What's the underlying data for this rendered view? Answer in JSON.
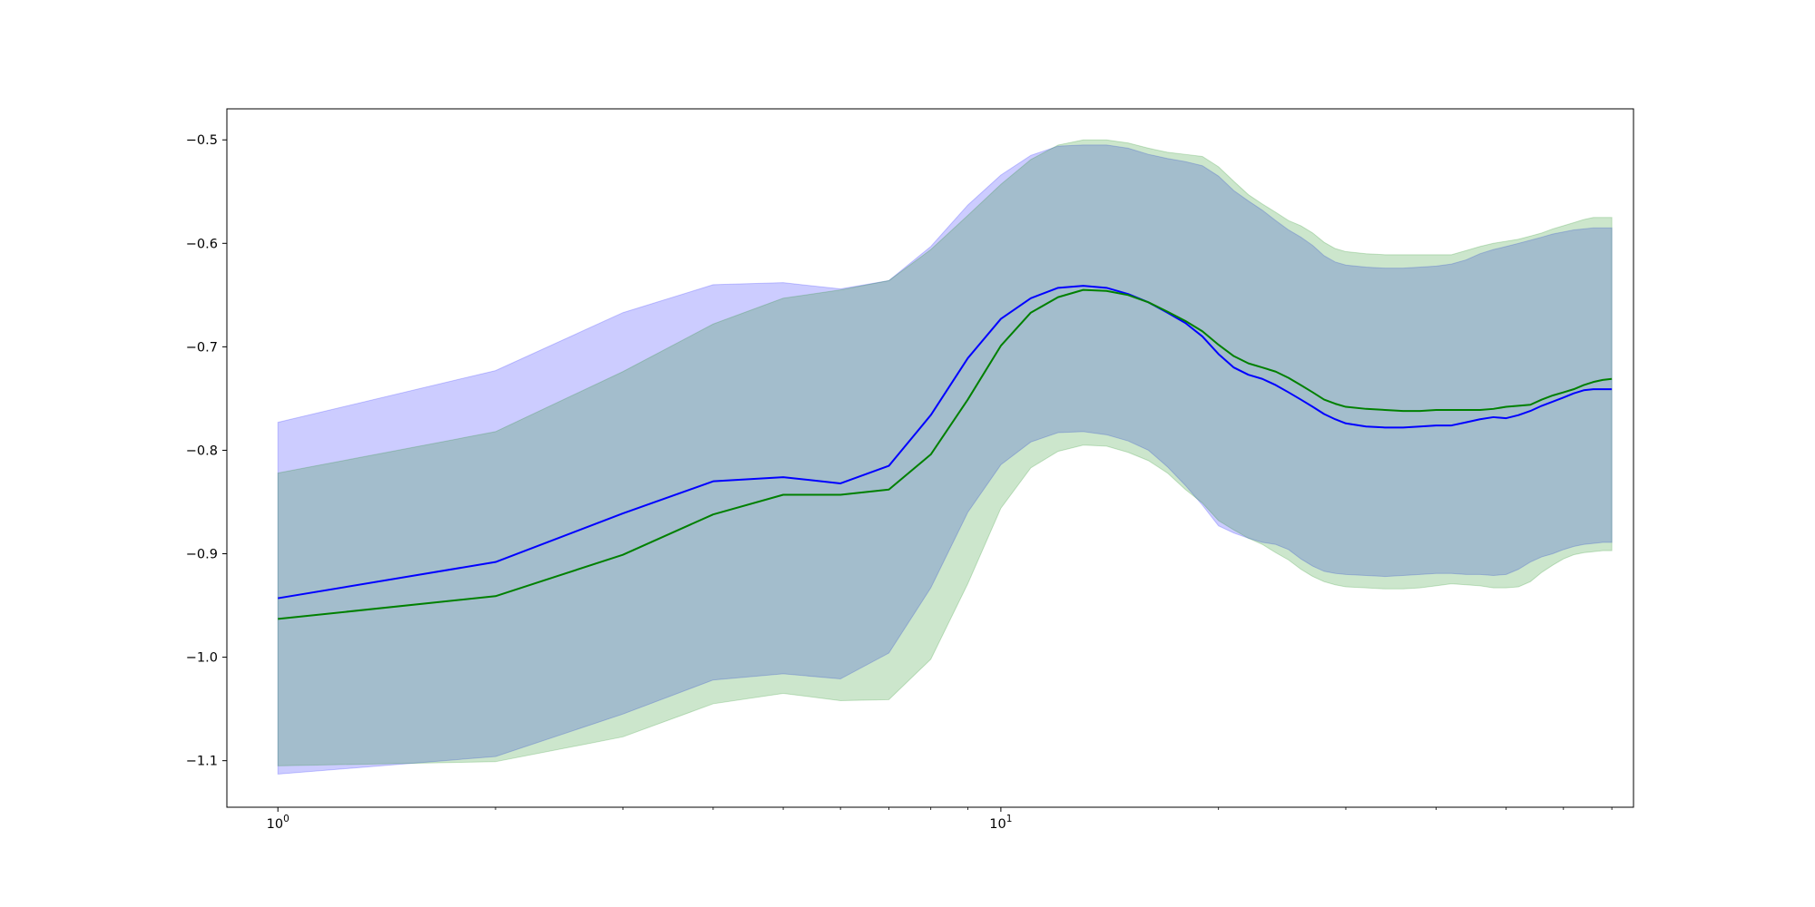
{
  "chart_data": {
    "type": "area",
    "title": "",
    "xlabel": "",
    "ylabel": "",
    "x_scale": "log",
    "xlim": [
      0.85,
      75
    ],
    "ylim": [
      -1.145,
      -0.47
    ],
    "grid": false,
    "legend": "none",
    "y_ticks": [
      {
        "value": -1.1,
        "label": "−1.1"
      },
      {
        "value": -1.0,
        "label": "−1.0"
      },
      {
        "value": -0.9,
        "label": "−0.9"
      },
      {
        "value": -0.8,
        "label": "−0.8"
      },
      {
        "value": -0.7,
        "label": "−0.7"
      },
      {
        "value": -0.6,
        "label": "−0.6"
      },
      {
        "value": -0.5,
        "label": "−0.5"
      }
    ],
    "x_ticks": [
      {
        "value": 1,
        "base": "10",
        "exponent": "0"
      },
      {
        "value": 10,
        "base": "10",
        "exponent": "1"
      }
    ],
    "x_minor_ticks": [
      2,
      3,
      4,
      5,
      6,
      7,
      8,
      9,
      20,
      30,
      40,
      50,
      60,
      70
    ],
    "x": [
      1,
      2,
      3,
      4,
      5,
      6,
      7,
      8,
      9,
      10,
      11,
      12,
      13,
      14,
      15,
      16,
      17,
      18,
      19,
      20,
      21,
      22,
      23,
      24,
      25,
      26,
      27,
      28,
      29,
      30,
      32,
      34,
      36,
      38,
      40,
      42,
      44,
      46,
      48,
      50,
      52,
      54,
      56,
      58,
      60,
      62,
      64,
      66,
      68,
      70
    ],
    "series": [
      {
        "color": "#0000ff",
        "band_color": "#0000ff",
        "mean": [
          -0.943,
          -0.908,
          -0.861,
          -0.83,
          -0.826,
          -0.832,
          -0.815,
          -0.766,
          -0.711,
          -0.673,
          -0.653,
          -0.643,
          -0.641,
          -0.643,
          -0.649,
          -0.657,
          -0.667,
          -0.677,
          -0.69,
          -0.707,
          -0.72,
          -0.727,
          -0.731,
          -0.737,
          -0.744,
          -0.751,
          -0.758,
          -0.765,
          -0.77,
          -0.774,
          -0.777,
          -0.778,
          -0.778,
          -0.777,
          -0.776,
          -0.776,
          -0.773,
          -0.77,
          -0.768,
          -0.769,
          -0.766,
          -0.762,
          -0.757,
          -0.753,
          -0.749,
          -0.745,
          -0.742,
          -0.741,
          -0.741,
          -0.741
        ],
        "upper": [
          -0.773,
          -0.723,
          -0.667,
          -0.64,
          -0.638,
          -0.644,
          -0.636,
          -0.603,
          -0.563,
          -0.534,
          -0.515,
          -0.506,
          -0.505,
          -0.505,
          -0.508,
          -0.514,
          -0.518,
          -0.521,
          -0.525,
          -0.535,
          -0.549,
          -0.559,
          -0.568,
          -0.578,
          -0.587,
          -0.594,
          -0.602,
          -0.612,
          -0.618,
          -0.621,
          -0.623,
          -0.624,
          -0.624,
          -0.623,
          -0.622,
          -0.62,
          -0.616,
          -0.61,
          -0.606,
          -0.603,
          -0.6,
          -0.597,
          -0.594,
          -0.591,
          -0.589,
          -0.587,
          -0.586,
          -0.585,
          -0.585,
          -0.585
        ],
        "lower": [
          -1.113,
          -1.096,
          -1.055,
          -1.022,
          -1.016,
          -1.021,
          -0.996,
          -0.933,
          -0.86,
          -0.814,
          -0.792,
          -0.783,
          -0.782,
          -0.785,
          -0.791,
          -0.8,
          -0.816,
          -0.834,
          -0.853,
          -0.873,
          -0.88,
          -0.885,
          -0.889,
          -0.891,
          -0.896,
          -0.905,
          -0.912,
          -0.917,
          -0.919,
          -0.92,
          -0.921,
          -0.922,
          -0.921,
          -0.92,
          -0.919,
          -0.919,
          -0.92,
          -0.92,
          -0.921,
          -0.92,
          -0.915,
          -0.908,
          -0.903,
          -0.9,
          -0.896,
          -0.893,
          -0.891,
          -0.89,
          -0.889,
          -0.889
        ]
      },
      {
        "color": "#008000",
        "band_color": "#008000",
        "mean": [
          -0.963,
          -0.941,
          -0.901,
          -0.862,
          -0.843,
          -0.843,
          -0.838,
          -0.804,
          -0.751,
          -0.699,
          -0.667,
          -0.652,
          -0.645,
          -0.646,
          -0.65,
          -0.657,
          -0.666,
          -0.675,
          -0.685,
          -0.698,
          -0.709,
          -0.716,
          -0.72,
          -0.724,
          -0.73,
          -0.737,
          -0.744,
          -0.751,
          -0.755,
          -0.758,
          -0.76,
          -0.761,
          -0.762,
          -0.762,
          -0.761,
          -0.761,
          -0.761,
          -0.761,
          -0.76,
          -0.758,
          -0.757,
          -0.756,
          -0.751,
          -0.747,
          -0.744,
          -0.741,
          -0.737,
          -0.734,
          -0.732,
          -0.731
        ],
        "upper": [
          -0.822,
          -0.782,
          -0.724,
          -0.678,
          -0.653,
          -0.645,
          -0.636,
          -0.606,
          -0.573,
          -0.543,
          -0.519,
          -0.505,
          -0.5,
          -0.5,
          -0.503,
          -0.508,
          -0.512,
          -0.514,
          -0.516,
          -0.526,
          -0.54,
          -0.553,
          -0.562,
          -0.57,
          -0.578,
          -0.583,
          -0.59,
          -0.599,
          -0.605,
          -0.608,
          -0.61,
          -0.611,
          -0.611,
          -0.611,
          -0.611,
          -0.611,
          -0.607,
          -0.603,
          -0.6,
          -0.598,
          -0.596,
          -0.593,
          -0.59,
          -0.586,
          -0.583,
          -0.58,
          -0.577,
          -0.575,
          -0.575,
          -0.575
        ],
        "lower": [
          -1.105,
          -1.101,
          -1.077,
          -1.045,
          -1.035,
          -1.042,
          -1.041,
          -1.002,
          -0.929,
          -0.856,
          -0.817,
          -0.801,
          -0.795,
          -0.796,
          -0.802,
          -0.81,
          -0.822,
          -0.838,
          -0.851,
          -0.868,
          -0.877,
          -0.885,
          -0.891,
          -0.899,
          -0.906,
          -0.915,
          -0.922,
          -0.927,
          -0.93,
          -0.932,
          -0.933,
          -0.934,
          -0.934,
          -0.933,
          -0.931,
          -0.929,
          -0.93,
          -0.931,
          -0.933,
          -0.933,
          -0.932,
          -0.927,
          -0.918,
          -0.911,
          -0.905,
          -0.901,
          -0.899,
          -0.898,
          -0.897,
          -0.897
        ]
      }
    ]
  }
}
